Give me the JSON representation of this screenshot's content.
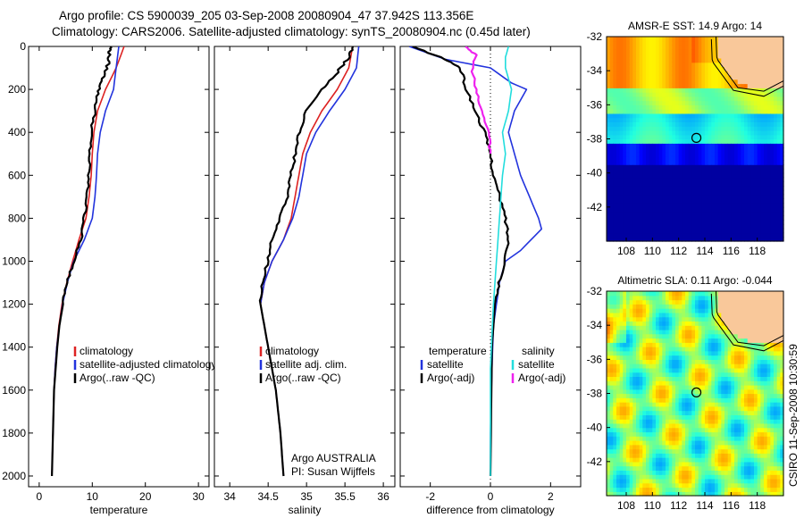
{
  "header": {
    "line1": "Argo profile: CS 5900039_205 03-Sep-2008 20080904_47 37.942S 113.356E",
    "line2": "Climatology: CARS2006. Satellite-adjusted climatology: synTS_20080904.nc (0.45d later)"
  },
  "side_label": "CSIRO 11-Sep-2008 10:30:59",
  "chart_data": [
    {
      "id": "temperature",
      "type": "line",
      "xlabel": "temperature",
      "xlim": [
        -2,
        32
      ],
      "xticks": [
        "0",
        "10",
        "20",
        "30"
      ],
      "xtick_values": [
        0,
        10,
        20,
        30
      ],
      "ylim": [
        0,
        2050
      ],
      "yticks": [
        "0",
        "200",
        "400",
        "600",
        "800",
        "1000",
        "1200",
        "1400",
        "1600",
        "1800",
        "2000"
      ],
      "ytick_values": [
        0,
        200,
        400,
        600,
        800,
        1000,
        1200,
        1400,
        1600,
        1800,
        2000
      ],
      "y_reversed": true,
      "legend": [
        "climatology",
        "satellite-adjusted climatology",
        "Argo(..raw -QC)"
      ],
      "series": [
        {
          "name": "climatology",
          "color": "#dd2222",
          "points": [
            [
              16,
              0
            ],
            [
              14.5,
              100
            ],
            [
              12.5,
              200
            ],
            [
              11,
              300
            ],
            [
              10.3,
              400
            ],
            [
              10,
              500
            ],
            [
              9.8,
              600
            ],
            [
              9.4,
              700
            ],
            [
              8.8,
              800
            ],
            [
              7.5,
              900
            ],
            [
              6.3,
              1000
            ],
            [
              5.2,
              1100
            ],
            [
              4.3,
              1200
            ],
            [
              3.7,
              1300
            ],
            [
              3.3,
              1400
            ],
            [
              3,
              1500
            ],
            [
              2.8,
              1600
            ],
            [
              2.7,
              1700
            ],
            [
              2.6,
              1800
            ],
            [
              2.5,
              1900
            ],
            [
              2.4,
              2000
            ]
          ]
        },
        {
          "name": "satellite-adjusted climatology",
          "color": "#2233dd",
          "points": [
            [
              15,
              0
            ],
            [
              14.5,
              100
            ],
            [
              14,
              200
            ],
            [
              12.5,
              300
            ],
            [
              11.5,
              400
            ],
            [
              11,
              500
            ],
            [
              10.8,
              600
            ],
            [
              10.5,
              700
            ],
            [
              10,
              800
            ],
            [
              8.5,
              900
            ],
            [
              6.5,
              1000
            ],
            [
              5.3,
              1100
            ],
            [
              4.4,
              1200
            ],
            [
              3.8,
              1300
            ],
            [
              3.3,
              1400
            ],
            [
              3,
              1500
            ],
            [
              2.8,
              1600
            ],
            [
              2.7,
              1700
            ],
            [
              2.6,
              1800
            ],
            [
              2.5,
              1900
            ],
            [
              2.4,
              2000
            ]
          ]
        },
        {
          "name": "Argo(..raw -QC)",
          "color": "#000000",
          "points": [
            [
              13.5,
              0
            ],
            [
              13.2,
              30
            ],
            [
              13,
              80
            ],
            [
              12,
              150
            ],
            [
              11,
              220
            ],
            [
              10.5,
              300
            ],
            [
              9.8,
              400
            ],
            [
              9.5,
              500
            ],
            [
              9.3,
              600
            ],
            [
              9,
              700
            ],
            [
              8.5,
              800
            ],
            [
              7.8,
              900
            ],
            [
              6.5,
              1000
            ],
            [
              5.3,
              1100
            ],
            [
              4.5,
              1200
            ],
            [
              3.8,
              1300
            ],
            [
              3.4,
              1400
            ],
            [
              3.1,
              1500
            ],
            [
              2.8,
              1600
            ],
            [
              2.7,
              1700
            ],
            [
              2.6,
              1800
            ],
            [
              2.5,
              1900
            ],
            [
              2.4,
              2000
            ]
          ]
        }
      ]
    },
    {
      "id": "salinity",
      "type": "line",
      "xlabel": "salinity",
      "xlim": [
        33.8,
        36.15
      ],
      "xticks": [
        "34",
        "34.5",
        "35",
        "35.5",
        "36"
      ],
      "xtick_values": [
        34,
        34.5,
        35,
        35.5,
        36
      ],
      "ylim": [
        0,
        2050
      ],
      "y_reversed": true,
      "legend": [
        "climatology",
        "satellite adj. clim.",
        "Argo(..raw -QC)"
      ],
      "annotation": [
        "Argo AUSTRALIA",
        "PI: Susan Wijffels"
      ],
      "series": [
        {
          "name": "climatology",
          "color": "#dd2222",
          "points": [
            [
              35.6,
              0
            ],
            [
              35.55,
              100
            ],
            [
              35.4,
              200
            ],
            [
              35.2,
              300
            ],
            [
              35.05,
              400
            ],
            [
              34.95,
              500
            ],
            [
              34.9,
              600
            ],
            [
              34.85,
              700
            ],
            [
              34.8,
              800
            ],
            [
              34.7,
              900
            ],
            [
              34.55,
              1000
            ],
            [
              34.45,
              1100
            ],
            [
              34.4,
              1200
            ],
            [
              34.45,
              1300
            ],
            [
              34.5,
              1400
            ],
            [
              34.55,
              1500
            ],
            [
              34.6,
              1600
            ],
            [
              34.63,
              1700
            ],
            [
              34.66,
              1800
            ],
            [
              34.68,
              1900
            ],
            [
              34.7,
              2000
            ]
          ]
        },
        {
          "name": "satellite adj. clim.",
          "color": "#2233dd",
          "points": [
            [
              35.68,
              0
            ],
            [
              35.65,
              100
            ],
            [
              35.5,
              200
            ],
            [
              35.3,
              300
            ],
            [
              35.12,
              400
            ],
            [
              35,
              500
            ],
            [
              34.95,
              600
            ],
            [
              34.9,
              700
            ],
            [
              34.82,
              800
            ],
            [
              34.7,
              900
            ],
            [
              34.55,
              1000
            ],
            [
              34.45,
              1100
            ],
            [
              34.4,
              1200
            ],
            [
              34.45,
              1300
            ],
            [
              34.5,
              1400
            ],
            [
              34.55,
              1500
            ],
            [
              34.6,
              1600
            ],
            [
              34.63,
              1700
            ],
            [
              34.66,
              1800
            ],
            [
              34.68,
              1900
            ],
            [
              34.7,
              2000
            ]
          ]
        },
        {
          "name": "Argo(..raw -QC)",
          "color": "#000000",
          "points": [
            [
              35.6,
              0
            ],
            [
              35.55,
              50
            ],
            [
              35.4,
              120
            ],
            [
              35.2,
              200
            ],
            [
              35,
              300
            ],
            [
              34.9,
              400
            ],
            [
              34.85,
              500
            ],
            [
              34.8,
              600
            ],
            [
              34.75,
              700
            ],
            [
              34.65,
              800
            ],
            [
              34.55,
              900
            ],
            [
              34.5,
              1000
            ],
            [
              34.42,
              1100
            ],
            [
              34.4,
              1200
            ],
            [
              34.45,
              1300
            ],
            [
              34.5,
              1400
            ],
            [
              34.55,
              1500
            ],
            [
              34.6,
              1600
            ],
            [
              34.63,
              1700
            ],
            [
              34.66,
              1800
            ],
            [
              34.68,
              1900
            ],
            [
              34.7,
              2000
            ]
          ]
        }
      ]
    },
    {
      "id": "difference",
      "type": "line",
      "xlabel": "difference from climatology",
      "xlim": [
        -3,
        3
      ],
      "xticks": [
        "-2",
        "0",
        "2"
      ],
      "xtick_values": [
        -2,
        0,
        2
      ],
      "ylim": [
        0,
        2050
      ],
      "y_reversed": true,
      "zero_line": true,
      "legend_temperature_header": "temperature",
      "legend_salinity_header": "salinity",
      "legend_temperature": [
        "satellite",
        "Argo(-adj)"
      ],
      "legend_salinity": [
        "satellite",
        "Argo(-adj)"
      ],
      "series": [
        {
          "name": "temperature satellite",
          "color": "#2233dd",
          "points": [
            [
              -2.7,
              0
            ],
            [
              -1.5,
              60
            ],
            [
              0,
              100
            ],
            [
              0.7,
              170
            ],
            [
              1.2,
              200
            ],
            [
              0.8,
              300
            ],
            [
              0.6,
              400
            ],
            [
              0.8,
              500
            ],
            [
              1,
              600
            ],
            [
              1.3,
              700
            ],
            [
              1.6,
              800
            ],
            [
              1.7,
              850
            ],
            [
              1,
              950
            ],
            [
              0.5,
              1000
            ],
            [
              0.3,
              1100
            ],
            [
              0.2,
              1200
            ],
            [
              0.1,
              1300
            ],
            [
              0.05,
              1500
            ],
            [
              0,
              1800
            ],
            [
              0,
              2000
            ]
          ]
        },
        {
          "name": "temperature Argo(-adj)",
          "color": "#000000",
          "points": [
            [
              -2.6,
              0
            ],
            [
              -1.5,
              60
            ],
            [
              -1,
              100
            ],
            [
              -0.8,
              200
            ],
            [
              -0.5,
              300
            ],
            [
              -0.2,
              400
            ],
            [
              0,
              500
            ],
            [
              0.1,
              600
            ],
            [
              0.3,
              700
            ],
            [
              0.5,
              800
            ],
            [
              0.6,
              900
            ],
            [
              0.5,
              1000
            ],
            [
              0.3,
              1100
            ],
            [
              0.15,
              1200
            ],
            [
              0.05,
              1400
            ],
            [
              0,
              2000
            ]
          ]
        },
        {
          "name": "salinity satellite",
          "color": "#22dddd",
          "points": [
            [
              0.6,
              0
            ],
            [
              0.5,
              50
            ],
            [
              0.5,
              100
            ],
            [
              0.7,
              200
            ],
            [
              0.6,
              300
            ],
            [
              0.4,
              400
            ],
            [
              0.5,
              500
            ],
            [
              0.4,
              600
            ],
            [
              0.35,
              700
            ],
            [
              0.3,
              800
            ],
            [
              0.2,
              1000
            ],
            [
              0.1,
              1200
            ],
            [
              0,
              1500
            ],
            [
              0,
              2000
            ]
          ]
        },
        {
          "name": "salinity Argo(-adj)",
          "color": "#ee22ee",
          "points": [
            [
              -0.8,
              0
            ],
            [
              -0.5,
              40
            ],
            [
              -0.6,
              100
            ],
            [
              -0.5,
              200
            ],
            [
              -0.3,
              300
            ],
            [
              -0.05,
              400
            ],
            [
              0,
              500
            ]
          ]
        }
      ]
    },
    {
      "id": "sst-map",
      "type": "heatmap",
      "title": "AMSR-E SST: 14.9 Argo: 14",
      "xlim": [
        106.5,
        120
      ],
      "ylim": [
        -44,
        -32
      ],
      "xticks": [
        "108",
        "110",
        "112",
        "114",
        "116",
        "118"
      ],
      "xtick_values": [
        108,
        110,
        112,
        114,
        116,
        118
      ],
      "yticks": [
        "-32",
        "-34",
        "-36",
        "-38",
        "-40",
        "-42"
      ],
      "ytick_values": [
        -32,
        -34,
        -36,
        -38,
        -40,
        -42
      ],
      "marker": [
        113.356,
        -37.942
      ],
      "land_color": "#f9c89a",
      "colormap": [
        "#00008f",
        "#0000ff",
        "#00a0ff",
        "#20ffe0",
        "#80ff80",
        "#ffff00",
        "#ffa000",
        "#ff3000",
        "#a00000"
      ]
    },
    {
      "id": "sla-map",
      "type": "heatmap",
      "title": "Altimetric SLA: 0.11 Argo: -0.044",
      "xlim": [
        106.5,
        120
      ],
      "ylim": [
        -44,
        -32
      ],
      "xticks": [
        "108",
        "110",
        "112",
        "114",
        "116",
        "118"
      ],
      "xtick_values": [
        108,
        110,
        112,
        114,
        116,
        118
      ],
      "yticks": [
        "-32",
        "-34",
        "-36",
        "-38",
        "-40",
        "-42"
      ],
      "ytick_values": [
        -32,
        -34,
        -36,
        -38,
        -40,
        -42
      ],
      "marker": [
        113.356,
        -37.942
      ],
      "land_color": "#f9c89a",
      "colormap": [
        "#0000ff",
        "#00a0ff",
        "#20ffe0",
        "#80ff80",
        "#ffff00",
        "#ffa000",
        "#ff3000"
      ]
    }
  ]
}
